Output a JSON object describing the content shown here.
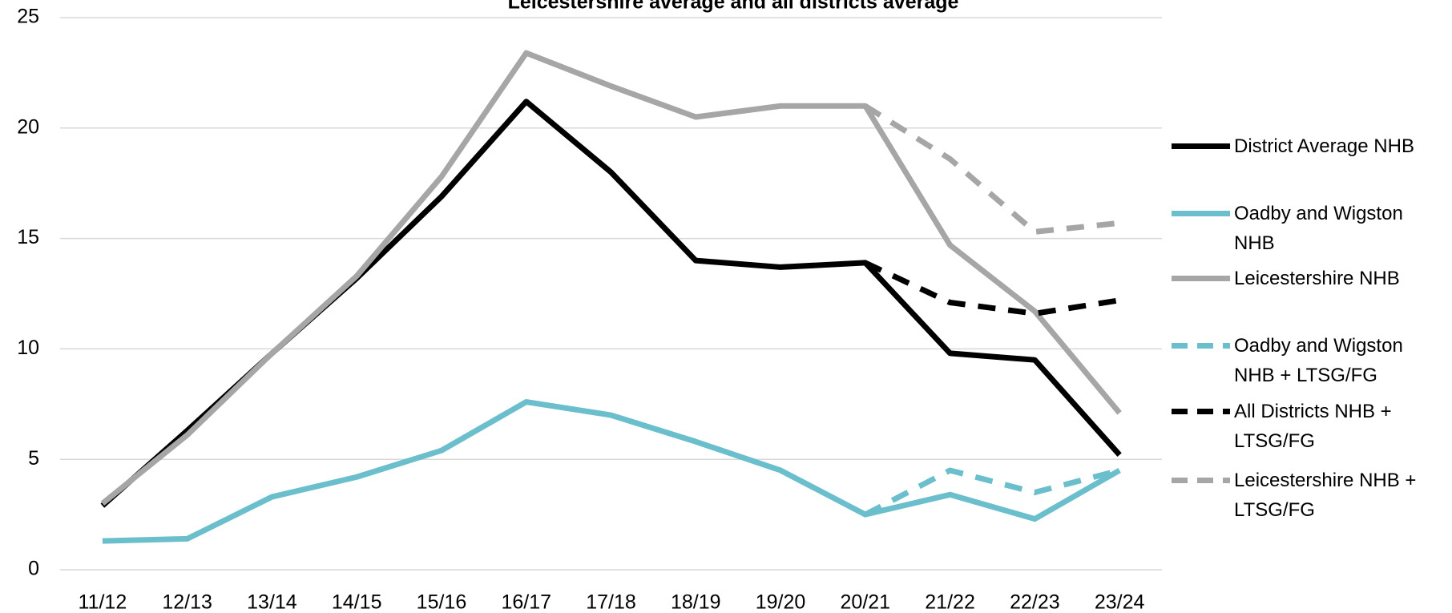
{
  "chart_data": {
    "type": "line",
    "title": "Leicestershire average and all districts average",
    "categories": [
      "11/12",
      "12/13",
      "13/14",
      "14/15",
      "15/16",
      "16/17",
      "17/18",
      "18/19",
      "19/20",
      "20/21",
      "21/22",
      "22/23",
      "23/24"
    ],
    "ylim": [
      0,
      25
    ],
    "yticks": [
      0,
      5,
      10,
      15,
      20,
      25
    ],
    "grid": true,
    "series": [
      {
        "name": "District Average NHB",
        "color": "#000000",
        "dashed": false,
        "values": [
          2.9,
          6.3,
          9.8,
          13.2,
          16.9,
          21.2,
          18.0,
          14.0,
          13.7,
          13.9,
          9.8,
          9.5,
          5.2
        ]
      },
      {
        "name": "Oadby and Wigston NHB",
        "color": "#6bbfcc",
        "dashed": false,
        "values": [
          1.3,
          1.4,
          3.3,
          4.2,
          5.4,
          7.6,
          7.0,
          5.8,
          4.5,
          2.5,
          3.4,
          2.3,
          4.5
        ]
      },
      {
        "name": "Leicestershire NHB",
        "color": "#a6a6a6",
        "dashed": false,
        "values": [
          3.0,
          6.1,
          9.8,
          13.3,
          17.8,
          23.4,
          21.9,
          20.5,
          21.0,
          21.0,
          14.7,
          11.7,
          7.1
        ]
      },
      {
        "name": "Oadby and Wigston NHB + LTSG/FG",
        "color": "#6bbfcc",
        "dashed": true,
        "values": [
          null,
          null,
          null,
          null,
          null,
          null,
          null,
          null,
          null,
          2.5,
          4.5,
          3.5,
          4.5
        ]
      },
      {
        "name": "All Districts NHB + LTSG/FG",
        "color": "#000000",
        "dashed": true,
        "values": [
          null,
          null,
          null,
          null,
          null,
          null,
          null,
          null,
          null,
          13.9,
          12.1,
          11.6,
          12.2
        ]
      },
      {
        "name": "Leicestershire NHB + LTSG/FG",
        "color": "#a6a6a6",
        "dashed": true,
        "values": [
          null,
          null,
          null,
          null,
          null,
          null,
          null,
          null,
          null,
          21.0,
          18.6,
          15.3,
          15.7
        ]
      }
    ]
  }
}
